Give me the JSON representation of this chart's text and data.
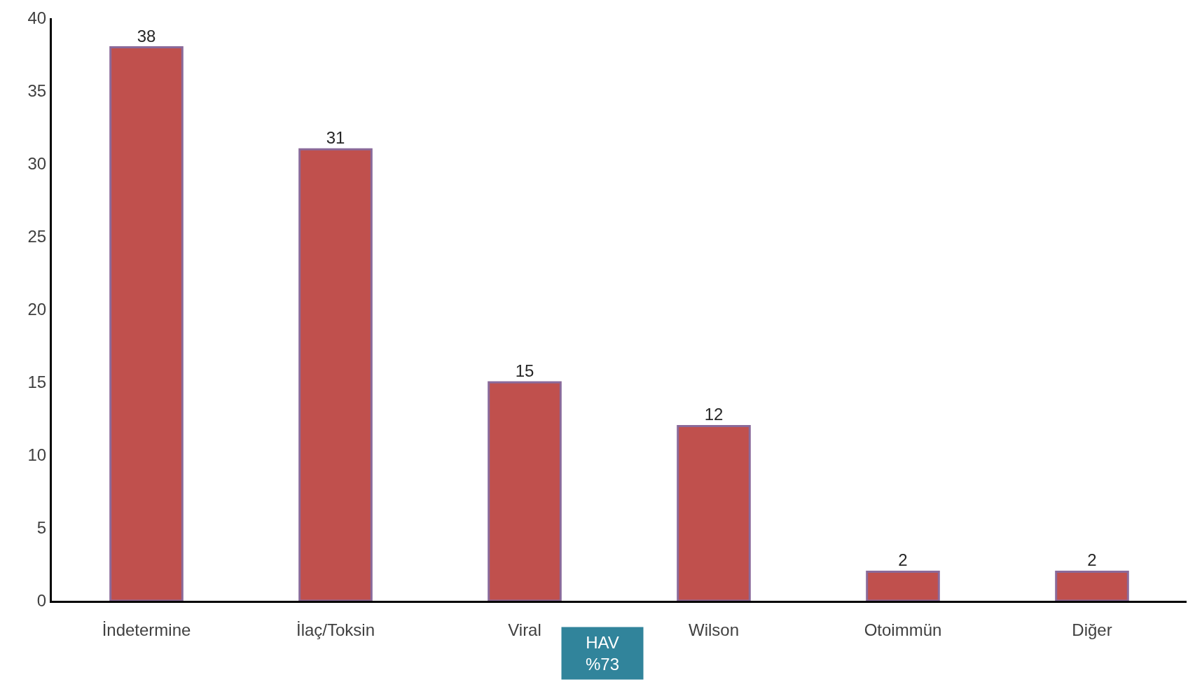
{
  "chart_data": {
    "type": "bar",
    "categories": [
      "İndetermine",
      "İlaç/Toksin",
      "Viral",
      "Wilson",
      "Otoimmün",
      "Diğer"
    ],
    "values": [
      38,
      31,
      15,
      12,
      2,
      2
    ],
    "color": "#c0504d",
    "ylim": [
      0,
      40
    ],
    "yticks": [
      0,
      5,
      10,
      15,
      20,
      25,
      30,
      35,
      40
    ],
    "legend": false,
    "data_labels": true,
    "annotations": [
      "HAV\n%73"
    ]
  }
}
